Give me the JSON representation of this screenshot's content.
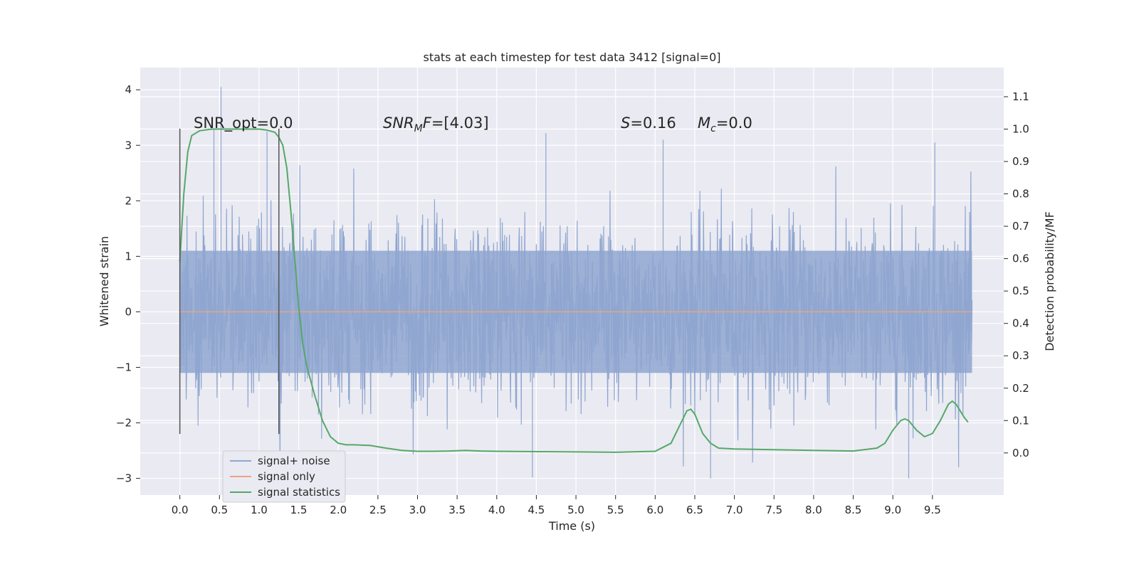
{
  "chart_data": {
    "type": "line",
    "title": "stats at each timestep for test data 3412 [signal=0]",
    "xlabel": "Time (s)",
    "ylabel": "Whitened strain",
    "ylabel_right": "Detection probability/MF",
    "xlim": [
      -0.5,
      10.4
    ],
    "ylim": [
      -3.3,
      4.4
    ],
    "ylim_right": [
      -0.13,
      1.19
    ],
    "xticks": [
      "0.0",
      "0.5",
      "1.0",
      "1.5",
      "2.0",
      "2.5",
      "3.0",
      "3.5",
      "4.0",
      "4.5",
      "5.0",
      "5.5",
      "6.0",
      "6.5",
      "7.0",
      "7.5",
      "8.0",
      "8.5",
      "9.0",
      "9.5"
    ],
    "yticks": [
      "4",
      "3",
      "2",
      "1",
      "0",
      "−1",
      "−2",
      "−3"
    ],
    "yticks_right": [
      "1.1",
      "1.0",
      "0.9",
      "0.8",
      "0.7",
      "0.6",
      "0.5",
      "0.4",
      "0.3",
      "0.2",
      "0.1",
      "0.0"
    ],
    "grid": true,
    "legend_position": "lower-left",
    "annotations": {
      "snr_opt": "SNR_opt=0.0",
      "snr_mf_base": "SNR",
      "snr_mf_sub": "M",
      "snr_mf_rest": "F=[4.03]",
      "s_italic": "S",
      "s_value": "=0.16",
      "mc_base": "M",
      "mc_sub": "c",
      "mc_value": "=0.0"
    },
    "window_markers": [
      0.0,
      1.25
    ],
    "series": [
      {
        "name": "signal+ noise",
        "color": "#8fa6d0",
        "description_values": "noise, amplitude approx ±1.6 typical, peaks up to 4.05",
        "peaks": [
          [
            0.52,
            4.05
          ],
          [
            0.43,
            3.3
          ],
          [
            1.1,
            3.25
          ],
          [
            4.62,
            3.22
          ],
          [
            9.53,
            3.05
          ],
          [
            6.1,
            3.1
          ],
          [
            6.7,
            -3.0
          ],
          [
            9.2,
            -3.0
          ],
          [
            4.45,
            -2.98
          ]
        ]
      },
      {
        "name": "signal only",
        "color": "#e8a483",
        "x": [
          0.0,
          10.0
        ],
        "y": [
          0.0,
          0.0
        ]
      },
      {
        "name": "signal statistics",
        "color": "#55a868",
        "axis": "right",
        "x": [
          0.0,
          0.05,
          0.1,
          0.15,
          0.25,
          0.4,
          0.6,
          0.8,
          1.0,
          1.1,
          1.2,
          1.25,
          1.3,
          1.35,
          1.4,
          1.45,
          1.5,
          1.55,
          1.6,
          1.7,
          1.8,
          1.9,
          2.0,
          2.1,
          2.2,
          2.4,
          2.6,
          2.8,
          3.0,
          3.2,
          3.4,
          3.6,
          3.8,
          4.0,
          4.5,
          5.0,
          5.5,
          6.0,
          6.2,
          6.3,
          6.4,
          6.45,
          6.5,
          6.6,
          6.7,
          6.8,
          7.0,
          7.5,
          8.0,
          8.5,
          8.8,
          8.9,
          9.0,
          9.1,
          9.15,
          9.2,
          9.3,
          9.4,
          9.5,
          9.6,
          9.7,
          9.75,
          9.8,
          9.9,
          9.95
        ],
        "y": [
          0.59,
          0.8,
          0.93,
          0.98,
          0.995,
          1.0,
          1.0,
          1.0,
          1.0,
          0.997,
          0.99,
          0.975,
          0.95,
          0.88,
          0.75,
          0.6,
          0.45,
          0.34,
          0.27,
          0.18,
          0.1,
          0.05,
          0.03,
          0.025,
          0.025,
          0.023,
          0.015,
          0.008,
          0.005,
          0.005,
          0.006,
          0.008,
          0.006,
          0.005,
          0.004,
          0.003,
          0.002,
          0.005,
          0.03,
          0.08,
          0.13,
          0.135,
          0.12,
          0.06,
          0.03,
          0.015,
          0.012,
          0.01,
          0.008,
          0.006,
          0.015,
          0.03,
          0.07,
          0.1,
          0.105,
          0.1,
          0.07,
          0.05,
          0.06,
          0.1,
          0.15,
          0.16,
          0.15,
          0.11,
          0.095
        ]
      }
    ]
  }
}
